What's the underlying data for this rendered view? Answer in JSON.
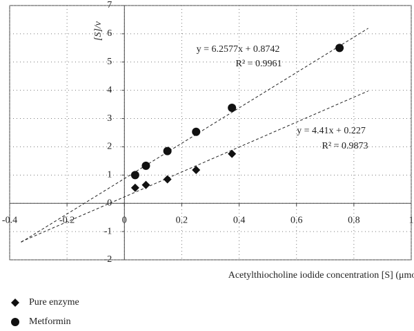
{
  "chart_data": {
    "type": "scatter",
    "x_label": "Acetylthiocholine iodide concentration [S] (μmol/mL)",
    "y_label": "[S]/ν",
    "xlim": [
      -0.4,
      1
    ],
    "xticks": [
      -0.4,
      -0.2,
      0,
      0.2,
      0.4,
      0.6,
      0.8,
      1
    ],
    "ylim": [
      -2,
      7
    ],
    "yticks": [
      -2,
      -1,
      0,
      1,
      2,
      3,
      4,
      5,
      6,
      7
    ],
    "grid": true,
    "legend": "bottom-left",
    "series": [
      {
        "name": "Pure enzyme",
        "marker": "diamond",
        "color": "#111",
        "x": [
          0.0375,
          0.075,
          0.15,
          0.25,
          0.375
        ],
        "values": [
          0.55,
          0.65,
          0.85,
          1.18,
          1.75
        ],
        "trendline": {
          "slope": 4.41,
          "intercept": 0.227,
          "x": [
            -0.36,
            0.85
          ],
          "equation": "y = 4.41x + 0.227",
          "r2": "R² = 0.9873"
        }
      },
      {
        "name": "Metformin",
        "marker": "circle",
        "color": "#111",
        "x": [
          0.0375,
          0.075,
          0.15,
          0.25,
          0.375,
          0.75
        ],
        "values": [
          1.0,
          1.33,
          1.85,
          2.53,
          3.38,
          5.5
        ],
        "trendline": {
          "slope": 6.2577,
          "intercept": 0.8742,
          "x": [
            -0.36,
            0.85
          ],
          "equation": "y = 6.2577x + 0.8742",
          "r2": "R² = 0.9961"
        }
      }
    ]
  }
}
